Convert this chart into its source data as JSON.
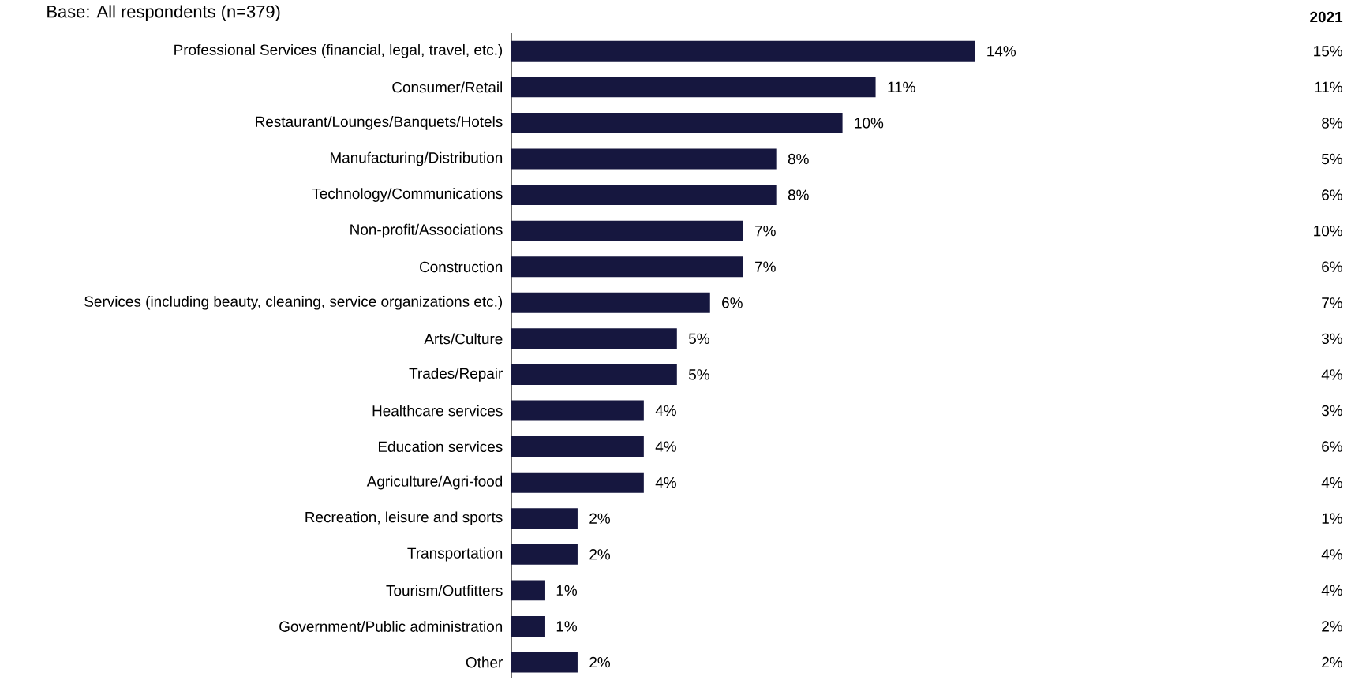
{
  "chart_data": {
    "type": "bar",
    "orientation": "horizontal",
    "subtitle": "Base: All respondents (n=379)",
    "categories": [
      "Professional Services (financial, legal, travel, etc.)",
      "Consumer/Retail",
      "Restaurant/Lounges/Banquets/Hotels",
      "Manufacturing/Distribution",
      "Technology/Communications",
      "Non-profit/Associations",
      "Construction",
      "Services (including beauty, cleaning, service organizations etc.)",
      "Arts/Culture",
      "Trades/Repair",
      "Healthcare services",
      "Education services",
      "Agriculture/Agri-food",
      "Recreation, leisure and sports",
      "Transportation",
      "Tourism/Outfitters",
      "Government/Public administration",
      "Other"
    ],
    "series": [
      {
        "color": "#16173f",
        "values": [
          14,
          11,
          10,
          8,
          8,
          7,
          7,
          6,
          5,
          5,
          4,
          4,
          4,
          2,
          2,
          1,
          1,
          2
        ],
        "value_labels": [
          "14%",
          "11%",
          "10%",
          "8%",
          "8%",
          "7%",
          "7%",
          "6%",
          "5%",
          "5%",
          "4%",
          "4%",
          "4%",
          "2%",
          "2%",
          "1%",
          "1%",
          "2%"
        ]
      }
    ],
    "annotations": [
      "2021",
      "15%",
      "11%",
      "8%",
      "5%",
      "6%",
      "10%",
      "6%",
      "7%",
      "3%",
      "4%",
      "3%",
      "6%",
      "4%",
      "1%",
      "4%",
      "4%",
      "2%",
      "2%"
    ]
  }
}
